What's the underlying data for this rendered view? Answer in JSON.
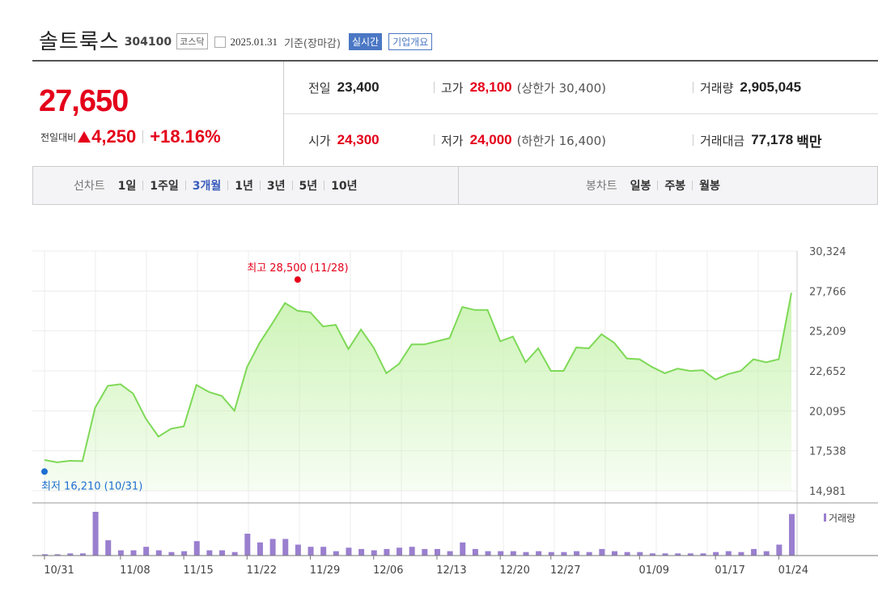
{
  "header": {
    "name": "솔트룩스",
    "code": "304100",
    "market": "코스닥",
    "date": "2025.01.31",
    "basis": "기준(장마감)",
    "realtime_label": "실시간",
    "overview_label": "기업개요"
  },
  "quote": {
    "price": "27,650",
    "change_label": "전일대비",
    "change_amount": "4,250",
    "change_pct": "+18.16%",
    "prev_close_label": "전일",
    "prev_close": "23,400",
    "high_label": "고가",
    "high": "28,100",
    "upper_limit_label": "(상한가 30,400)",
    "volume_label": "거래량",
    "volume": "2,905,045",
    "open_label": "시가",
    "open": "24,300",
    "low_label": "저가",
    "low": "24,000",
    "lower_limit_label": "(하한가 16,400)",
    "turnover_label": "거래대금",
    "turnover": "77,178",
    "turnover_unit": "백만"
  },
  "periods": {
    "line_label": "선차트",
    "line_items": [
      "1일",
      "1주일",
      "3개월",
      "1년",
      "3년",
      "5년",
      "10년"
    ],
    "active": "3개월",
    "candle_label": "봉차트",
    "candle_items": [
      "일봉",
      "주봉",
      "월봉"
    ]
  },
  "colors": {
    "up": "#e4001a",
    "down_blue": "#1f6fd1",
    "line": "#7ed957",
    "fill": "#c9f3b1",
    "volume_bar": "#9a7fcf",
    "active_tab": "#3a5dbd"
  },
  "chart_data": {
    "type": "area",
    "ylim": [
      14981,
      30324
    ],
    "y_ticks": [
      "30,324",
      "27,766",
      "25,209",
      "22,652",
      "20,095",
      "17,538",
      "14,981"
    ],
    "y_tick_values": [
      30324,
      27766,
      25209,
      22652,
      20095,
      17538,
      14981
    ],
    "x_tick_labels": [
      "10/31",
      "11/08",
      "11/15",
      "11/22",
      "11/29",
      "12/06",
      "12/13",
      "12/20",
      "12/27",
      "01/09",
      "01/17",
      "01/24"
    ],
    "x_tick_index": [
      0,
      6,
      11,
      16,
      21,
      26,
      31,
      36,
      40,
      47,
      53,
      58
    ],
    "dates": [
      "10/31",
      "11/01",
      "11/04",
      "11/05",
      "11/06",
      "11/07",
      "11/08",
      "11/11",
      "11/12",
      "11/13",
      "11/14",
      "11/15",
      "11/18",
      "11/19",
      "11/20",
      "11/21",
      "11/22",
      "11/25",
      "11/26",
      "11/27",
      "11/28",
      "11/29",
      "12/02",
      "12/03",
      "12/04",
      "12/05",
      "12/06",
      "12/09",
      "12/10",
      "12/11",
      "12/12",
      "12/13",
      "12/16",
      "12/17",
      "12/18",
      "12/19",
      "12/20",
      "12/23",
      "12/24",
      "12/26",
      "12/27",
      "12/30",
      "01/02",
      "01/03",
      "01/06",
      "01/07",
      "01/08",
      "01/09",
      "01/10",
      "01/13",
      "01/14",
      "01/15",
      "01/16",
      "01/17",
      "01/20",
      "01/21",
      "01/22",
      "01/23",
      "01/24",
      "01/31"
    ],
    "close": [
      16950,
      16800,
      16900,
      16880,
      20300,
      21700,
      21800,
      21200,
      19600,
      18450,
      18950,
      19100,
      21750,
      21300,
      21050,
      20100,
      22900,
      24450,
      25700,
      27000,
      26500,
      26400,
      25500,
      25600,
      24050,
      25300,
      24150,
      22500,
      23100,
      24350,
      24350,
      24550,
      24750,
      26750,
      26550,
      26550,
      24550,
      24850,
      23200,
      24100,
      22650,
      22650,
      24150,
      24100,
      25000,
      24450,
      23450,
      23400,
      22900,
      22500,
      22800,
      22650,
      22700,
      22100,
      22450,
      22650,
      23400,
      23200,
      23400,
      27650
    ],
    "volume_rel": [
      0.03,
      0.03,
      0.05,
      0.05,
      1.0,
      0.35,
      0.12,
      0.12,
      0.2,
      0.12,
      0.08,
      0.1,
      0.33,
      0.12,
      0.12,
      0.08,
      0.5,
      0.3,
      0.38,
      0.38,
      0.25,
      0.2,
      0.2,
      0.1,
      0.18,
      0.15,
      0.12,
      0.15,
      0.18,
      0.2,
      0.15,
      0.15,
      0.1,
      0.3,
      0.15,
      0.1,
      0.1,
      0.1,
      0.08,
      0.1,
      0.08,
      0.08,
      0.1,
      0.08,
      0.15,
      0.1,
      0.08,
      0.08,
      0.05,
      0.05,
      0.05,
      0.05,
      0.05,
      0.08,
      0.1,
      0.08,
      0.15,
      0.1,
      0.25,
      0.95
    ],
    "max_point": {
      "label": "최고 28,500 (11/28)",
      "value": 28500,
      "index": 20
    },
    "min_point": {
      "label": "최저 16,210 (10/31)",
      "value": 16210,
      "index": 0
    },
    "volume_legend": "거래량"
  }
}
